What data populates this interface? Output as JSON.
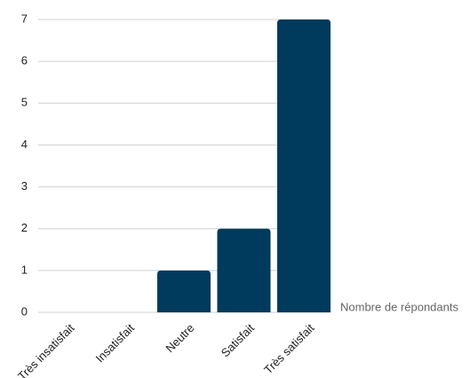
{
  "chart_data": {
    "type": "bar",
    "categories": [
      "Très insatisfait",
      "Insatisfait",
      "Neutre",
      "Satisfait",
      "Très satisfait"
    ],
    "series": [
      {
        "name": "Nombre de répondants",
        "values": [
          0,
          0,
          1,
          2,
          7
        ],
        "color": "#003a5c"
      }
    ],
    "ylim": [
      0,
      7
    ],
    "yticks": [
      "0",
      "1",
      "2",
      "3",
      "4",
      "5",
      "6",
      "7"
    ],
    "grid": true,
    "legend_placement": "right",
    "gridline_color": "#d0d0d0"
  }
}
